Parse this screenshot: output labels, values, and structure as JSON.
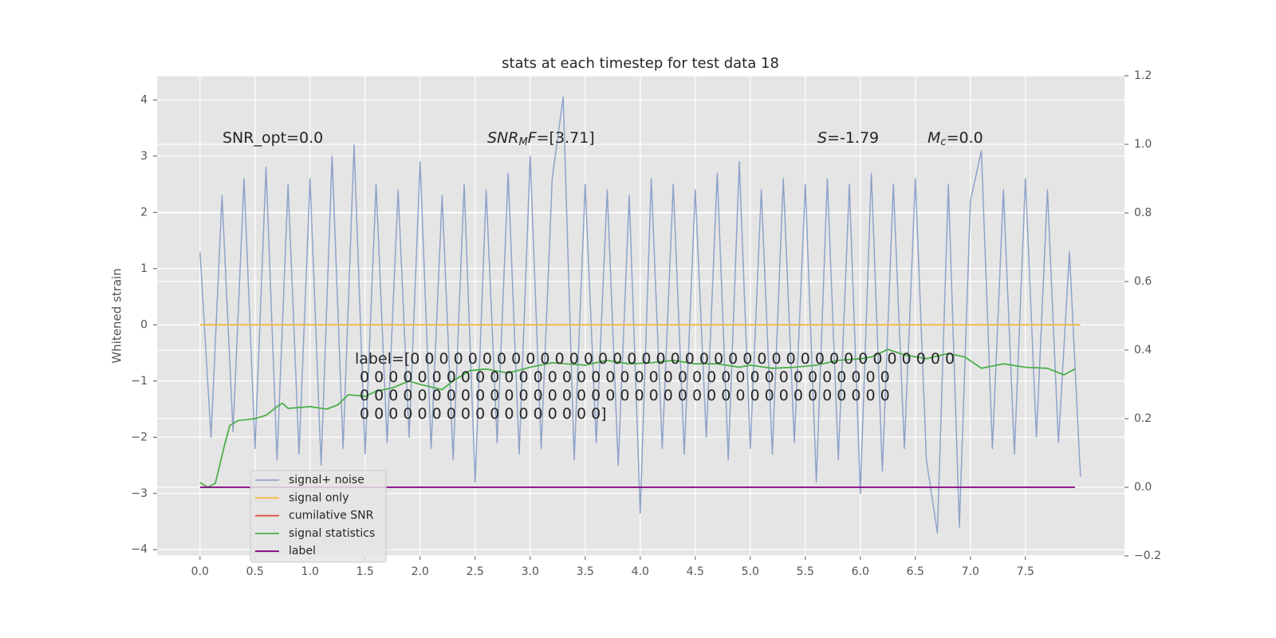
{
  "chart_data": {
    "type": "line",
    "title": "stats at each timestep for test data 18",
    "ylabel": "Whitened strain",
    "xlim": [
      -0.39,
      8.4
    ],
    "ylim": [
      -4.11,
      4.43
    ],
    "y2lim": [
      -0.2,
      1.2
    ],
    "xticks": [
      {
        "value": 0,
        "label": "0.0"
      },
      {
        "value": 0.5,
        "label": "0.5"
      },
      {
        "value": 1,
        "label": "1.0"
      },
      {
        "value": 1.5,
        "label": "1.5"
      },
      {
        "value": 2,
        "label": "2.0"
      },
      {
        "value": 2.5,
        "label": "2.5"
      },
      {
        "value": 3,
        "label": "3.0"
      },
      {
        "value": 3.5,
        "label": "3.5"
      },
      {
        "value": 4,
        "label": "4.0"
      },
      {
        "value": 4.5,
        "label": "4.5"
      },
      {
        "value": 5,
        "label": "5.0"
      },
      {
        "value": 5.5,
        "label": "5.5"
      },
      {
        "value": 6,
        "label": "6.0"
      },
      {
        "value": 6.5,
        "label": "6.5"
      },
      {
        "value": 7,
        "label": "7.0"
      },
      {
        "value": 7.5,
        "label": "7.5"
      }
    ],
    "yticks": [
      {
        "value": -4,
        "label": "−4"
      },
      {
        "value": -3,
        "label": "−3"
      },
      {
        "value": -2,
        "label": "−2"
      },
      {
        "value": -1,
        "label": "−1"
      },
      0,
      1,
      2,
      3,
      4
    ],
    "y2ticks": [
      {
        "value": -0.2,
        "label": "−0.2"
      },
      {
        "value": 0,
        "label": "0.0"
      },
      {
        "value": 0.2,
        "label": "0.2"
      },
      {
        "value": 0.4,
        "label": "0.4"
      },
      {
        "value": 0.6,
        "label": "0.6"
      },
      {
        "value": 0.8,
        "label": "0.8"
      },
      {
        "value": 1,
        "label": "1.0"
      },
      {
        "value": 1.2,
        "label": "1.2"
      }
    ],
    "grid": true,
    "legend": "lower left",
    "series": [
      {
        "name": "signal+ noise",
        "color": "#8fa3c9",
        "x": [
          0,
          0.1,
          0.2,
          0.3,
          0.4,
          0.5,
          0.6,
          0.7,
          0.8,
          0.9,
          1,
          1.1,
          1.2,
          1.3,
          1.4,
          1.5,
          1.6,
          1.7,
          1.8,
          1.9,
          2,
          2.1,
          2.2,
          2.3,
          2.4,
          2.5,
          2.6,
          2.7,
          2.8,
          2.9,
          3,
          3.1,
          3.2,
          3.3,
          3.4,
          3.5,
          3.6,
          3.7,
          3.8,
          3.9,
          4,
          4.1,
          4.2,
          4.3,
          4.4,
          4.5,
          4.6,
          4.7,
          4.8,
          4.9,
          5,
          5.1,
          5.2,
          5.3,
          5.4,
          5.5,
          5.6,
          5.7,
          5.8,
          5.9,
          6,
          6.1,
          6.2,
          6.3,
          6.4,
          6.5,
          6.6,
          6.7,
          6.8,
          6.9,
          7,
          7.1,
          7.2,
          7.3,
          7.4,
          7.5,
          7.6,
          7.7,
          7.8,
          7.9,
          8
        ],
        "values": [
          1.3,
          -2.0,
          2.3,
          -1.9,
          2.6,
          -2.2,
          2.8,
          -2.4,
          2.5,
          -2.3,
          2.6,
          -2.5,
          3.0,
          -2.2,
          3.2,
          -2.3,
          2.5,
          -2.1,
          2.4,
          -2.0,
          2.9,
          -2.2,
          2.3,
          -2.4,
          2.5,
          -2.8,
          2.4,
          -2.1,
          2.7,
          -2.3,
          3.0,
          -2.2,
          2.6,
          4.05,
          -2.4,
          2.5,
          -2.1,
          2.4,
          -2.5,
          2.3,
          -3.35,
          2.6,
          -2.2,
          2.5,
          -2.3,
          2.4,
          -2.0,
          2.7,
          -2.4,
          2.9,
          -2.2,
          2.4,
          -2.3,
          2.6,
          -2.1,
          2.5,
          -2.8,
          2.6,
          -2.4,
          2.5,
          -3.0,
          2.7,
          -2.6,
          2.5,
          -2.2,
          2.6,
          -2.4,
          -3.7,
          2.5,
          -3.6,
          2.2,
          3.1,
          -2.2,
          2.4,
          -2.3,
          2.6,
          -2.0,
          2.4,
          -2.1,
          1.3,
          -2.7
        ]
      },
      {
        "name": "signal only",
        "color": "#f4b942",
        "x": [
          0,
          8
        ],
        "values": [
          0,
          0
        ]
      },
      {
        "name": "cumilative SNR",
        "color": "#e24a33",
        "x": [],
        "values": []
      },
      {
        "name": "signal statistics",
        "color": "#4daf4a",
        "axis": "y2",
        "x": [
          0,
          0.07,
          0.14,
          0.22,
          0.27,
          0.35,
          0.5,
          0.6,
          0.7,
          0.75,
          0.8,
          1.0,
          1.15,
          1.25,
          1.35,
          1.5,
          1.6,
          1.75,
          1.9,
          2.0,
          2.2,
          2.3,
          2.45,
          2.6,
          2.8,
          3.0,
          3.2,
          3.5,
          3.7,
          3.9,
          4.1,
          4.3,
          4.5,
          4.7,
          4.9,
          5.0,
          5.2,
          5.4,
          5.6,
          5.8,
          6.0,
          6.1,
          6.25,
          6.4,
          6.6,
          6.8,
          6.95,
          7.1,
          7.3,
          7.5,
          7.7,
          7.85,
          7.95
        ],
        "values": [
          0.014,
          0,
          0.012,
          0.12,
          0.18,
          0.195,
          0.2,
          0.21,
          0.235,
          0.245,
          0.23,
          0.235,
          0.228,
          0.24,
          0.27,
          0.265,
          0.28,
          0.29,
          0.31,
          0.3,
          0.285,
          0.31,
          0.34,
          0.345,
          0.333,
          0.35,
          0.363,
          0.356,
          0.37,
          0.36,
          0.363,
          0.37,
          0.36,
          0.36,
          0.35,
          0.356,
          0.347,
          0.35,
          0.356,
          0.37,
          0.375,
          0.38,
          0.402,
          0.386,
          0.375,
          0.39,
          0.38,
          0.347,
          0.36,
          0.35,
          0.347,
          0.328,
          0.345
        ]
      },
      {
        "name": "label",
        "color": "#800080",
        "axis": "y2",
        "x": [
          0,
          7.95
        ],
        "values": [
          0,
          0
        ]
      }
    ],
    "annotations": [
      {
        "parts": [
          "SNR_opt=0.0"
        ],
        "styles": [
          "normal"
        ]
      },
      {
        "parts": [
          "SNR",
          "M",
          "F",
          "=[3.71]"
        ],
        "styles": [
          "italic",
          "sub",
          "italic",
          "normal"
        ]
      },
      {
        "parts": [
          "S",
          "=-1.79"
        ],
        "styles": [
          "italic",
          "normal"
        ]
      },
      {
        "parts": [
          "M",
          "c",
          "=0.0"
        ],
        "styles": [
          "italic",
          "sub",
          "normal"
        ]
      }
    ],
    "label_text": [
      "label=[0 0 0 0 0 0 0 0 0 0 0 0 0 0 0 0 0 0 0 0 0 0 0 0 0 0 0 0 0 0 0 0 0 0 0 0 0 0",
      " 0 0 0 0 0 0 0 0 0 0 0 0 0 0 0 0 0 0 0 0 0 0 0 0 0 0 0 0 0 0 0 0 0 0 0 0 0",
      " 0 0 0 0 0 0 0 0 0 0 0 0 0 0 0 0 0 0 0 0 0 0 0 0 0 0 0 0 0 0 0 0 0 0 0 0 0",
      " 0 0 0 0 0 0 0 0 0 0 0 0 0 0 0 0 0]"
    ]
  }
}
